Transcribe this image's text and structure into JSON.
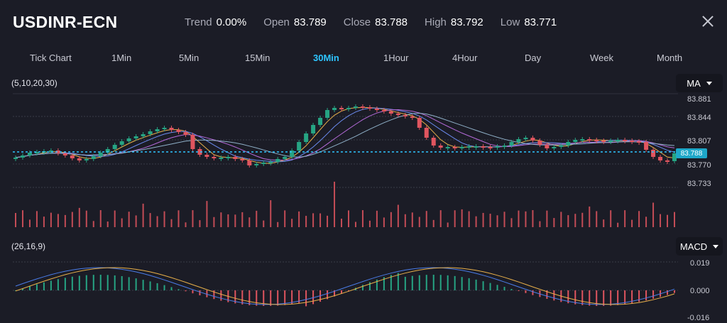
{
  "header": {
    "symbol": "USDINR-ECN",
    "stats": [
      {
        "label": "Trend",
        "value": "0.00%"
      },
      {
        "label": "Open",
        "value": "83.789"
      },
      {
        "label": "Close",
        "value": "83.788"
      },
      {
        "label": "High",
        "value": "83.792"
      },
      {
        "label": "Low",
        "value": "83.771"
      }
    ]
  },
  "tabs": [
    {
      "label": "Tick Chart",
      "active": false
    },
    {
      "label": "1Min",
      "active": false
    },
    {
      "label": "5Min",
      "active": false
    },
    {
      "label": "15Min",
      "active": false
    },
    {
      "label": "30Min",
      "active": true
    },
    {
      "label": "1Hour",
      "active": false
    },
    {
      "label": "4Hour",
      "active": false
    },
    {
      "label": "Day",
      "active": false
    },
    {
      "label": "Week",
      "active": false
    },
    {
      "label": "Month",
      "active": false
    }
  ],
  "main_chart": {
    "indicator_params": "(5,10,20,30)",
    "indicator_dropdown": "MA",
    "price_ticks": [
      "83.881",
      "83.844",
      "83.807",
      "83.770",
      "83.733"
    ],
    "current_price": "83.788",
    "colors": {
      "up": "#26a483",
      "down": "#e0555f",
      "current_line": "#2ec5ff"
    }
  },
  "macd_chart": {
    "indicator_params": "(26,16,9)",
    "indicator_dropdown": "MACD",
    "ticks": [
      "0.019",
      "0.000",
      "-0.016"
    ]
  },
  "icons": {
    "close": "close-icon",
    "dropdown_caret": "chevron-down-icon"
  }
}
